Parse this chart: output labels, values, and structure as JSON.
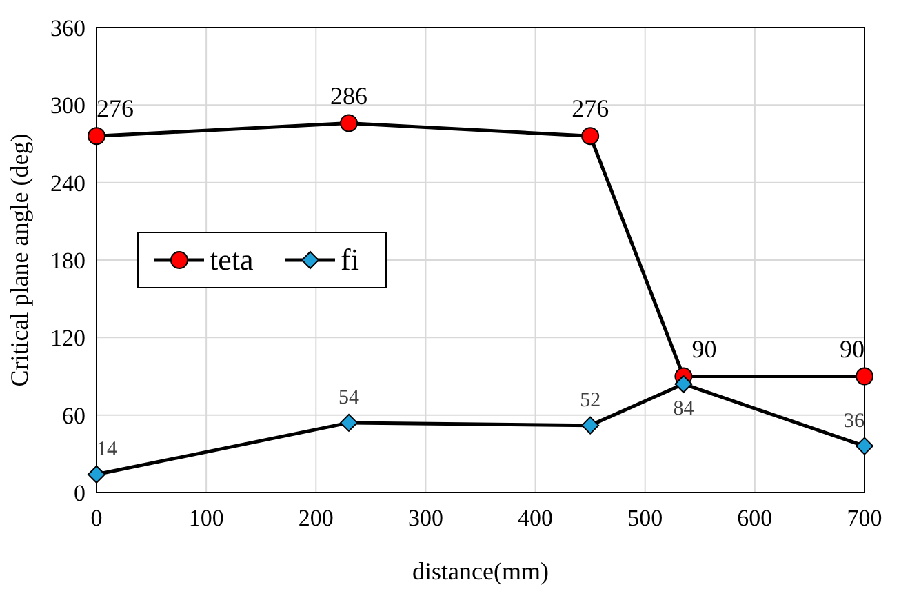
{
  "chart_data": {
    "type": "line",
    "xlabel": "distance(mm)",
    "ylabel": "Critical plane angle (deg)",
    "xlim": [
      0,
      700
    ],
    "xticks": [
      0,
      100,
      200,
      300,
      400,
      500,
      600,
      700
    ],
    "ylim": [
      0,
      360
    ],
    "yticks": [
      0,
      60,
      120,
      180,
      240,
      300,
      360
    ],
    "grid": true,
    "legend": "left",
    "marker": "circle",
    "data_labels": true,
    "series": [
      {
        "name": "teta",
        "color": "#ff0000",
        "x": [
          0,
          230,
          450,
          535,
          700
        ],
        "values": [
          276,
          286,
          276,
          90,
          90
        ]
      },
      {
        "name": "fi",
        "color": "#1ea0d8",
        "x": [
          0,
          230,
          450,
          535,
          700
        ],
        "values": [
          14,
          54,
          52,
          84,
          36
        ],
        "marker": "diamond"
      }
    ]
  }
}
